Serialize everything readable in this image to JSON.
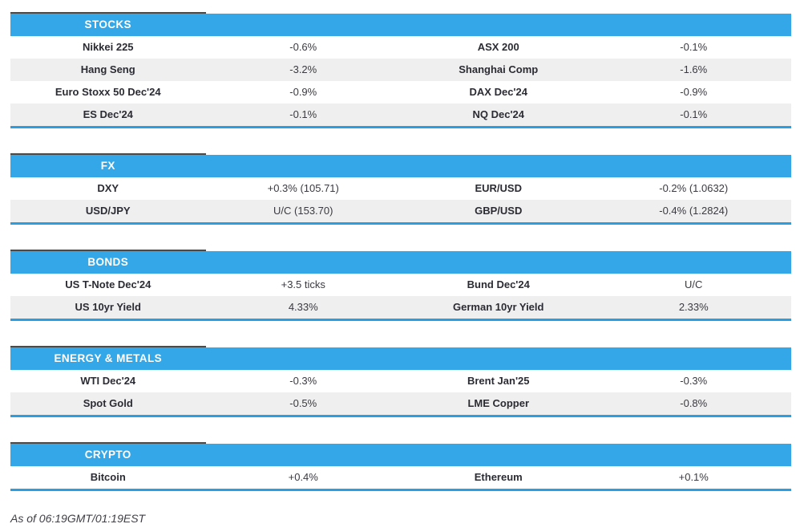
{
  "table": {
    "sections": [
      {
        "title": "STOCKS",
        "rows": [
          [
            "Nikkei 225",
            "-0.6%",
            "ASX 200",
            "-0.1%"
          ],
          [
            "Hang Seng",
            "-3.2%",
            "Shanghai Comp",
            "-1.6%"
          ],
          [
            "Euro Stoxx 50 Dec'24",
            "-0.9%",
            "DAX Dec'24",
            "-0.9%"
          ],
          [
            "ES Dec'24",
            "-0.1%",
            "NQ Dec'24",
            "-0.1%"
          ]
        ]
      },
      {
        "title": "FX",
        "rows": [
          [
            "DXY",
            "+0.3% (105.71)",
            "EUR/USD",
            "-0.2% (1.0632)"
          ],
          [
            "USD/JPY",
            "U/C (153.70)",
            "GBP/USD",
            "-0.4% (1.2824)"
          ]
        ]
      },
      {
        "title": "BONDS",
        "rows": [
          [
            "US T-Note Dec'24",
            "+3.5 ticks",
            "Bund Dec'24",
            "U/C"
          ],
          [
            "US 10yr Yield",
            "4.33%",
            "German 10yr Yield",
            "2.33%"
          ]
        ]
      },
      {
        "title": "ENERGY & METALS",
        "rows": [
          [
            "WTI Dec'24",
            "-0.3%",
            "Brent Jan'25",
            "-0.3%"
          ],
          [
            "Spot Gold",
            "-0.5%",
            "LME Copper",
            "-0.8%"
          ]
        ]
      },
      {
        "title": "CRYPTO",
        "rows": [
          [
            "Bitcoin",
            "+0.4%",
            "Ethereum",
            "+0.1%"
          ]
        ]
      }
    ]
  },
  "footer": {
    "timestamp": "As of 06:19GMT/01:19EST"
  },
  "colors": {
    "header_blue": "#34A7E9",
    "border_blue": "#2B9EE1",
    "row_alt": "#EFEFEF",
    "text_dark": "#33333B"
  }
}
